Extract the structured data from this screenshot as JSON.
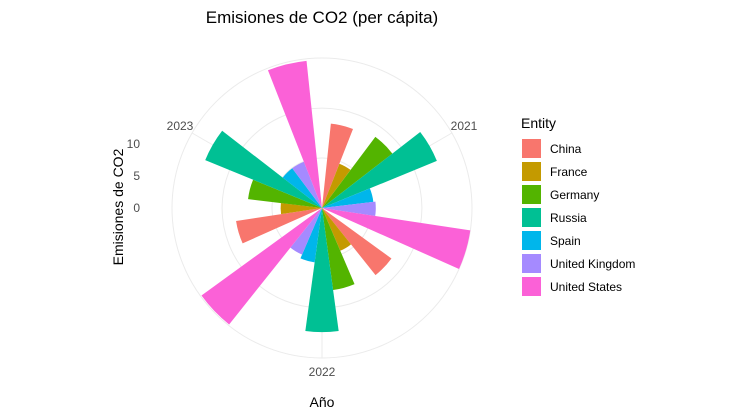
{
  "chart_data": {
    "type": "bar",
    "coordinate_system": "polar",
    "title": "Emisiones de CO2 (per cápita)",
    "xlabel": "Año",
    "ylabel": "Emisiones de CO2",
    "categories": [
      "2021",
      "2022",
      "2023"
    ],
    "y_ticks": [
      "0",
      "5",
      "10"
    ],
    "ylim": [
      0,
      14.5
    ],
    "grid": true,
    "legend": {
      "title": "Entity",
      "position": "right"
    },
    "series": [
      {
        "name": "China",
        "color": "#F8766D",
        "values": [
          8.2,
          8.3,
          8.4
        ]
      },
      {
        "name": "France",
        "color": "#C49A00",
        "values": [
          4.6,
          4.5,
          4.0
        ]
      },
      {
        "name": "Germany",
        "color": "#53B400",
        "values": [
          8.6,
          8.0,
          7.2
        ]
      },
      {
        "name": "Russia",
        "color": "#00C094",
        "values": [
          12.0,
          12.0,
          12.2
        ]
      },
      {
        "name": "Spain",
        "color": "#00B6EB",
        "values": [
          5.0,
          5.3,
          4.8
        ]
      },
      {
        "name": "United Kingdom",
        "color": "#A58AFF",
        "values": [
          5.2,
          4.9,
          4.8
        ]
      },
      {
        "name": "United States",
        "color": "#FB61D7",
        "values": [
          14.5,
          14.4,
          14.3
        ]
      }
    ]
  }
}
